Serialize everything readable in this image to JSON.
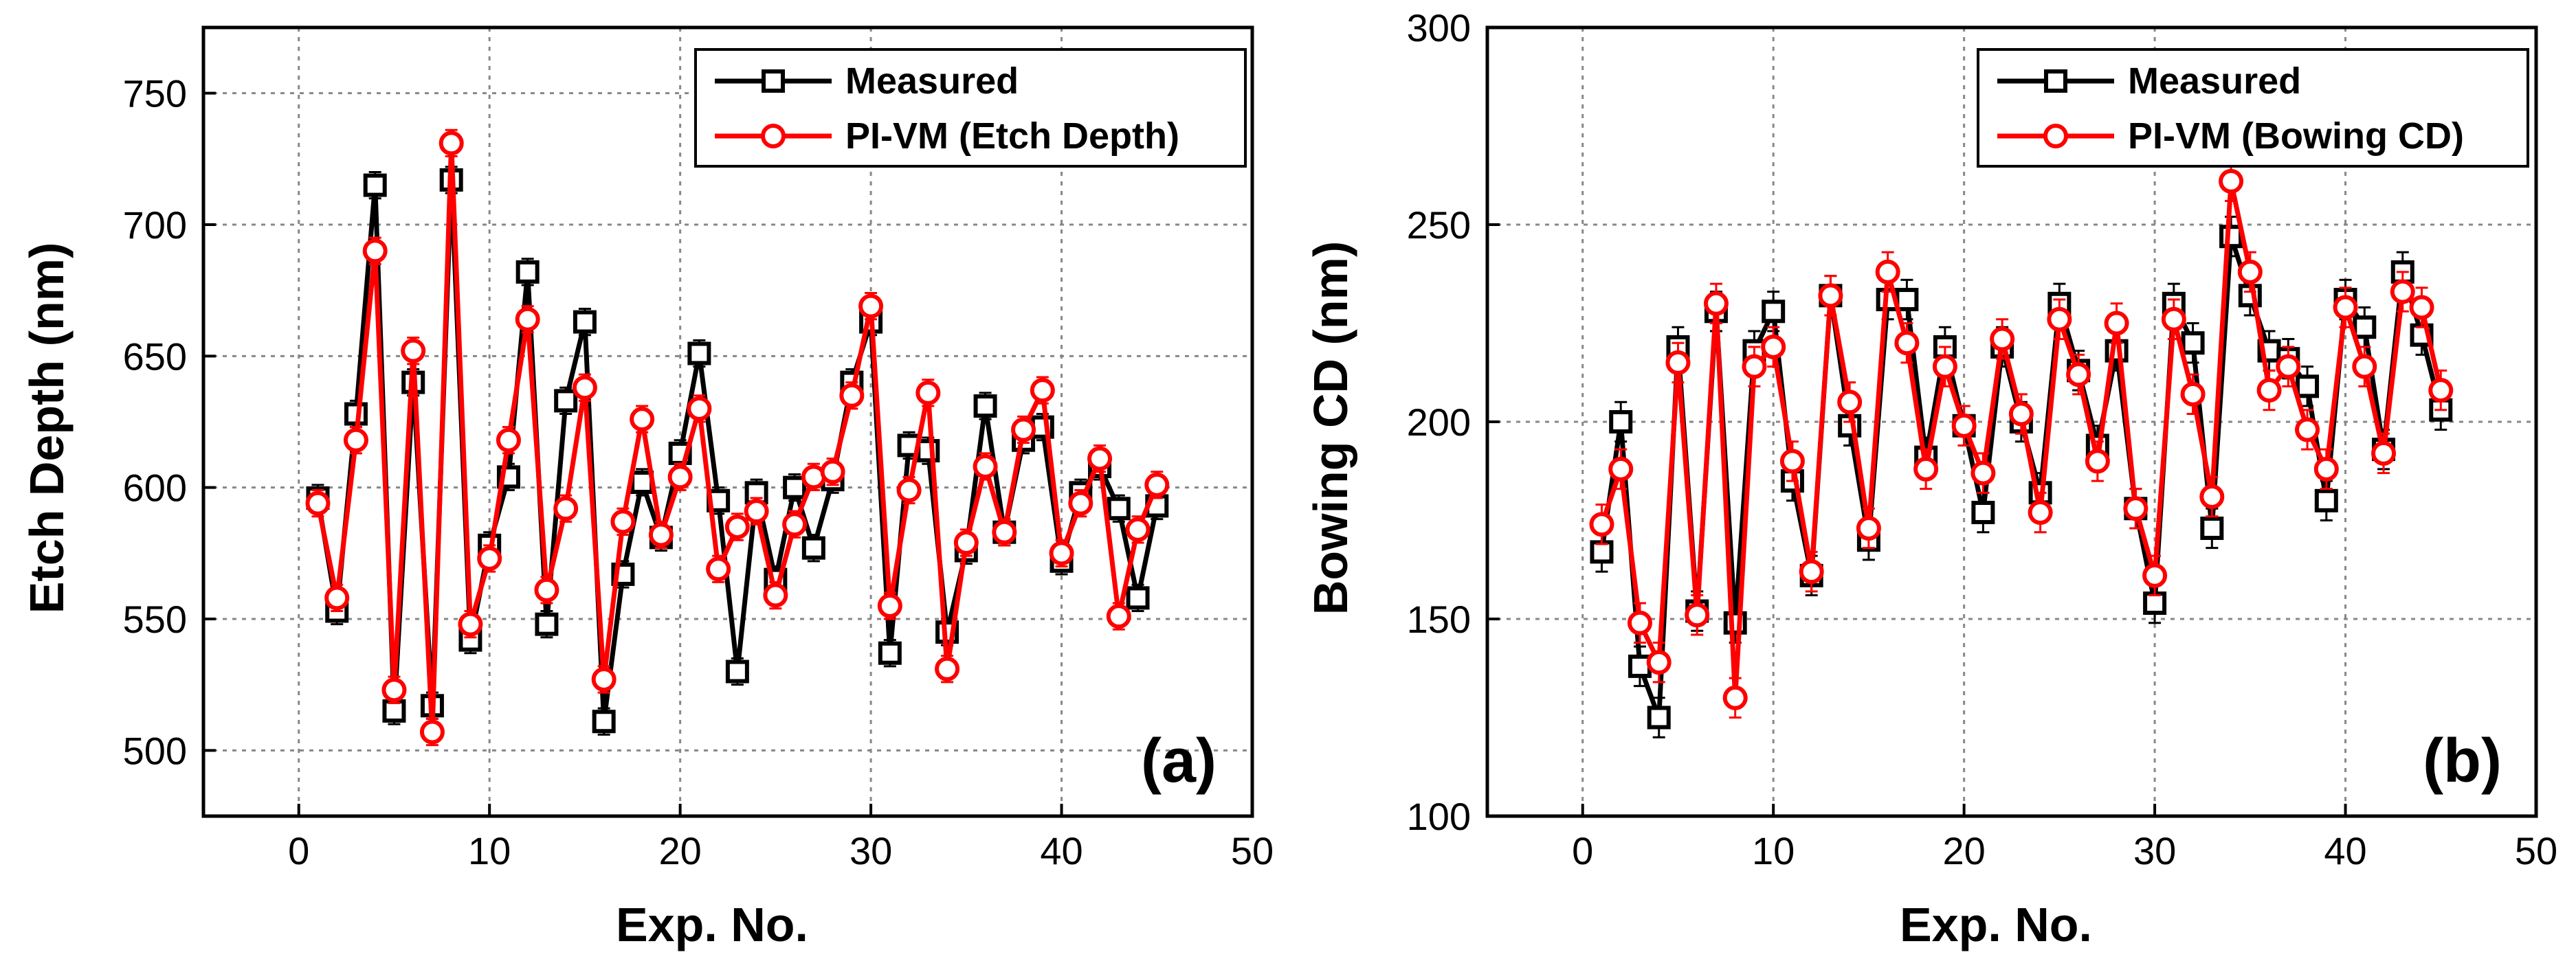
{
  "colors": {
    "measured": "#000000",
    "predicted": "#ff0000",
    "frame": "#000000",
    "grid": "#888888"
  },
  "chart_data": [
    {
      "type": "line",
      "panel_label": "(a)",
      "xlabel": "Exp. No.",
      "ylabel": "Etch Depth (nm)",
      "xlim": [
        -5,
        50
      ],
      "ylim": [
        475,
        775
      ],
      "xticks": [
        0,
        10,
        20,
        30,
        40,
        50
      ],
      "yticks": [
        500,
        550,
        600,
        650,
        700,
        750
      ],
      "legend_position": "top-right",
      "x": [
        1,
        2,
        3,
        4,
        5,
        6,
        7,
        8,
        9,
        10,
        11,
        12,
        13,
        14,
        15,
        16,
        17,
        18,
        19,
        20,
        21,
        22,
        23,
        24,
        25,
        26,
        27,
        28,
        29,
        30,
        31,
        32,
        33,
        34,
        35,
        36,
        37,
        38,
        39,
        40,
        41,
        42,
        43,
        44,
        45
      ],
      "series": [
        {
          "name": "Measured",
          "marker": "square",
          "color": "#000000",
          "values": [
            596,
            553,
            628,
            715,
            515,
            640,
            517,
            717,
            542,
            578,
            604,
            682,
            548,
            633,
            663,
            511,
            567,
            602,
            581,
            613,
            651,
            595,
            530,
            598,
            565,
            600,
            577,
            603,
            640,
            663,
            537,
            616,
            614,
            545,
            576,
            631,
            583,
            618,
            623,
            572,
            598,
            608,
            592,
            558,
            593
          ],
          "error": 5
        },
        {
          "name": "PI-VM (Etch Depth)",
          "marker": "circle",
          "color": "#ff0000",
          "values": [
            594,
            558,
            618,
            690,
            523,
            652,
            507,
            731,
            548,
            573,
            618,
            664,
            561,
            592,
            638,
            527,
            587,
            626,
            582,
            604,
            630,
            569,
            585,
            591,
            559,
            586,
            604,
            606,
            635,
            669,
            555,
            599,
            636,
            531,
            579,
            608,
            583,
            622,
            637,
            575,
            594,
            611,
            551,
            584,
            601
          ],
          "error": 5
        }
      ]
    },
    {
      "type": "line",
      "panel_label": "(b)",
      "xlabel": "Exp. No.",
      "ylabel": "Bowing CD (nm)",
      "xlim": [
        -5,
        50
      ],
      "ylim": [
        100,
        300
      ],
      "xticks": [
        0,
        10,
        20,
        30,
        40,
        50
      ],
      "yticks": [
        100,
        150,
        200,
        250,
        300
      ],
      "legend_position": "top-right",
      "x": [
        1,
        2,
        3,
        4,
        5,
        6,
        7,
        8,
        9,
        10,
        11,
        12,
        13,
        14,
        15,
        16,
        17,
        18,
        19,
        20,
        21,
        22,
        23,
        24,
        25,
        26,
        27,
        28,
        29,
        30,
        31,
        32,
        33,
        34,
        35,
        36,
        37,
        38,
        39,
        40,
        41,
        42,
        43,
        44,
        45
      ],
      "series": [
        {
          "name": "Measured",
          "marker": "square",
          "color": "#000000",
          "values": [
            167,
            200,
            138,
            125,
            219,
            152,
            228,
            149,
            218,
            228,
            185,
            161,
            232,
            199,
            170,
            231,
            231,
            191,
            219,
            199,
            177,
            219,
            200,
            182,
            230,
            213,
            194,
            218,
            178,
            154,
            230,
            220,
            173,
            247,
            232,
            218,
            216,
            209,
            180,
            231,
            224,
            193,
            238,
            222,
            203
          ],
          "error": 5
        },
        {
          "name": "PI-VM (Bowing CD)",
          "marker": "circle",
          "color": "#ff0000",
          "values": [
            174,
            188,
            149,
            139,
            215,
            151,
            230,
            130,
            214,
            219,
            190,
            162,
            232,
            205,
            173,
            238,
            220,
            188,
            214,
            199,
            187,
            221,
            202,
            177,
            226,
            212,
            190,
            225,
            178,
            161,
            226,
            207,
            181,
            261,
            238,
            208,
            214,
            198,
            188,
            229,
            214,
            192,
            233,
            229,
            208
          ],
          "error": 5
        }
      ]
    }
  ]
}
